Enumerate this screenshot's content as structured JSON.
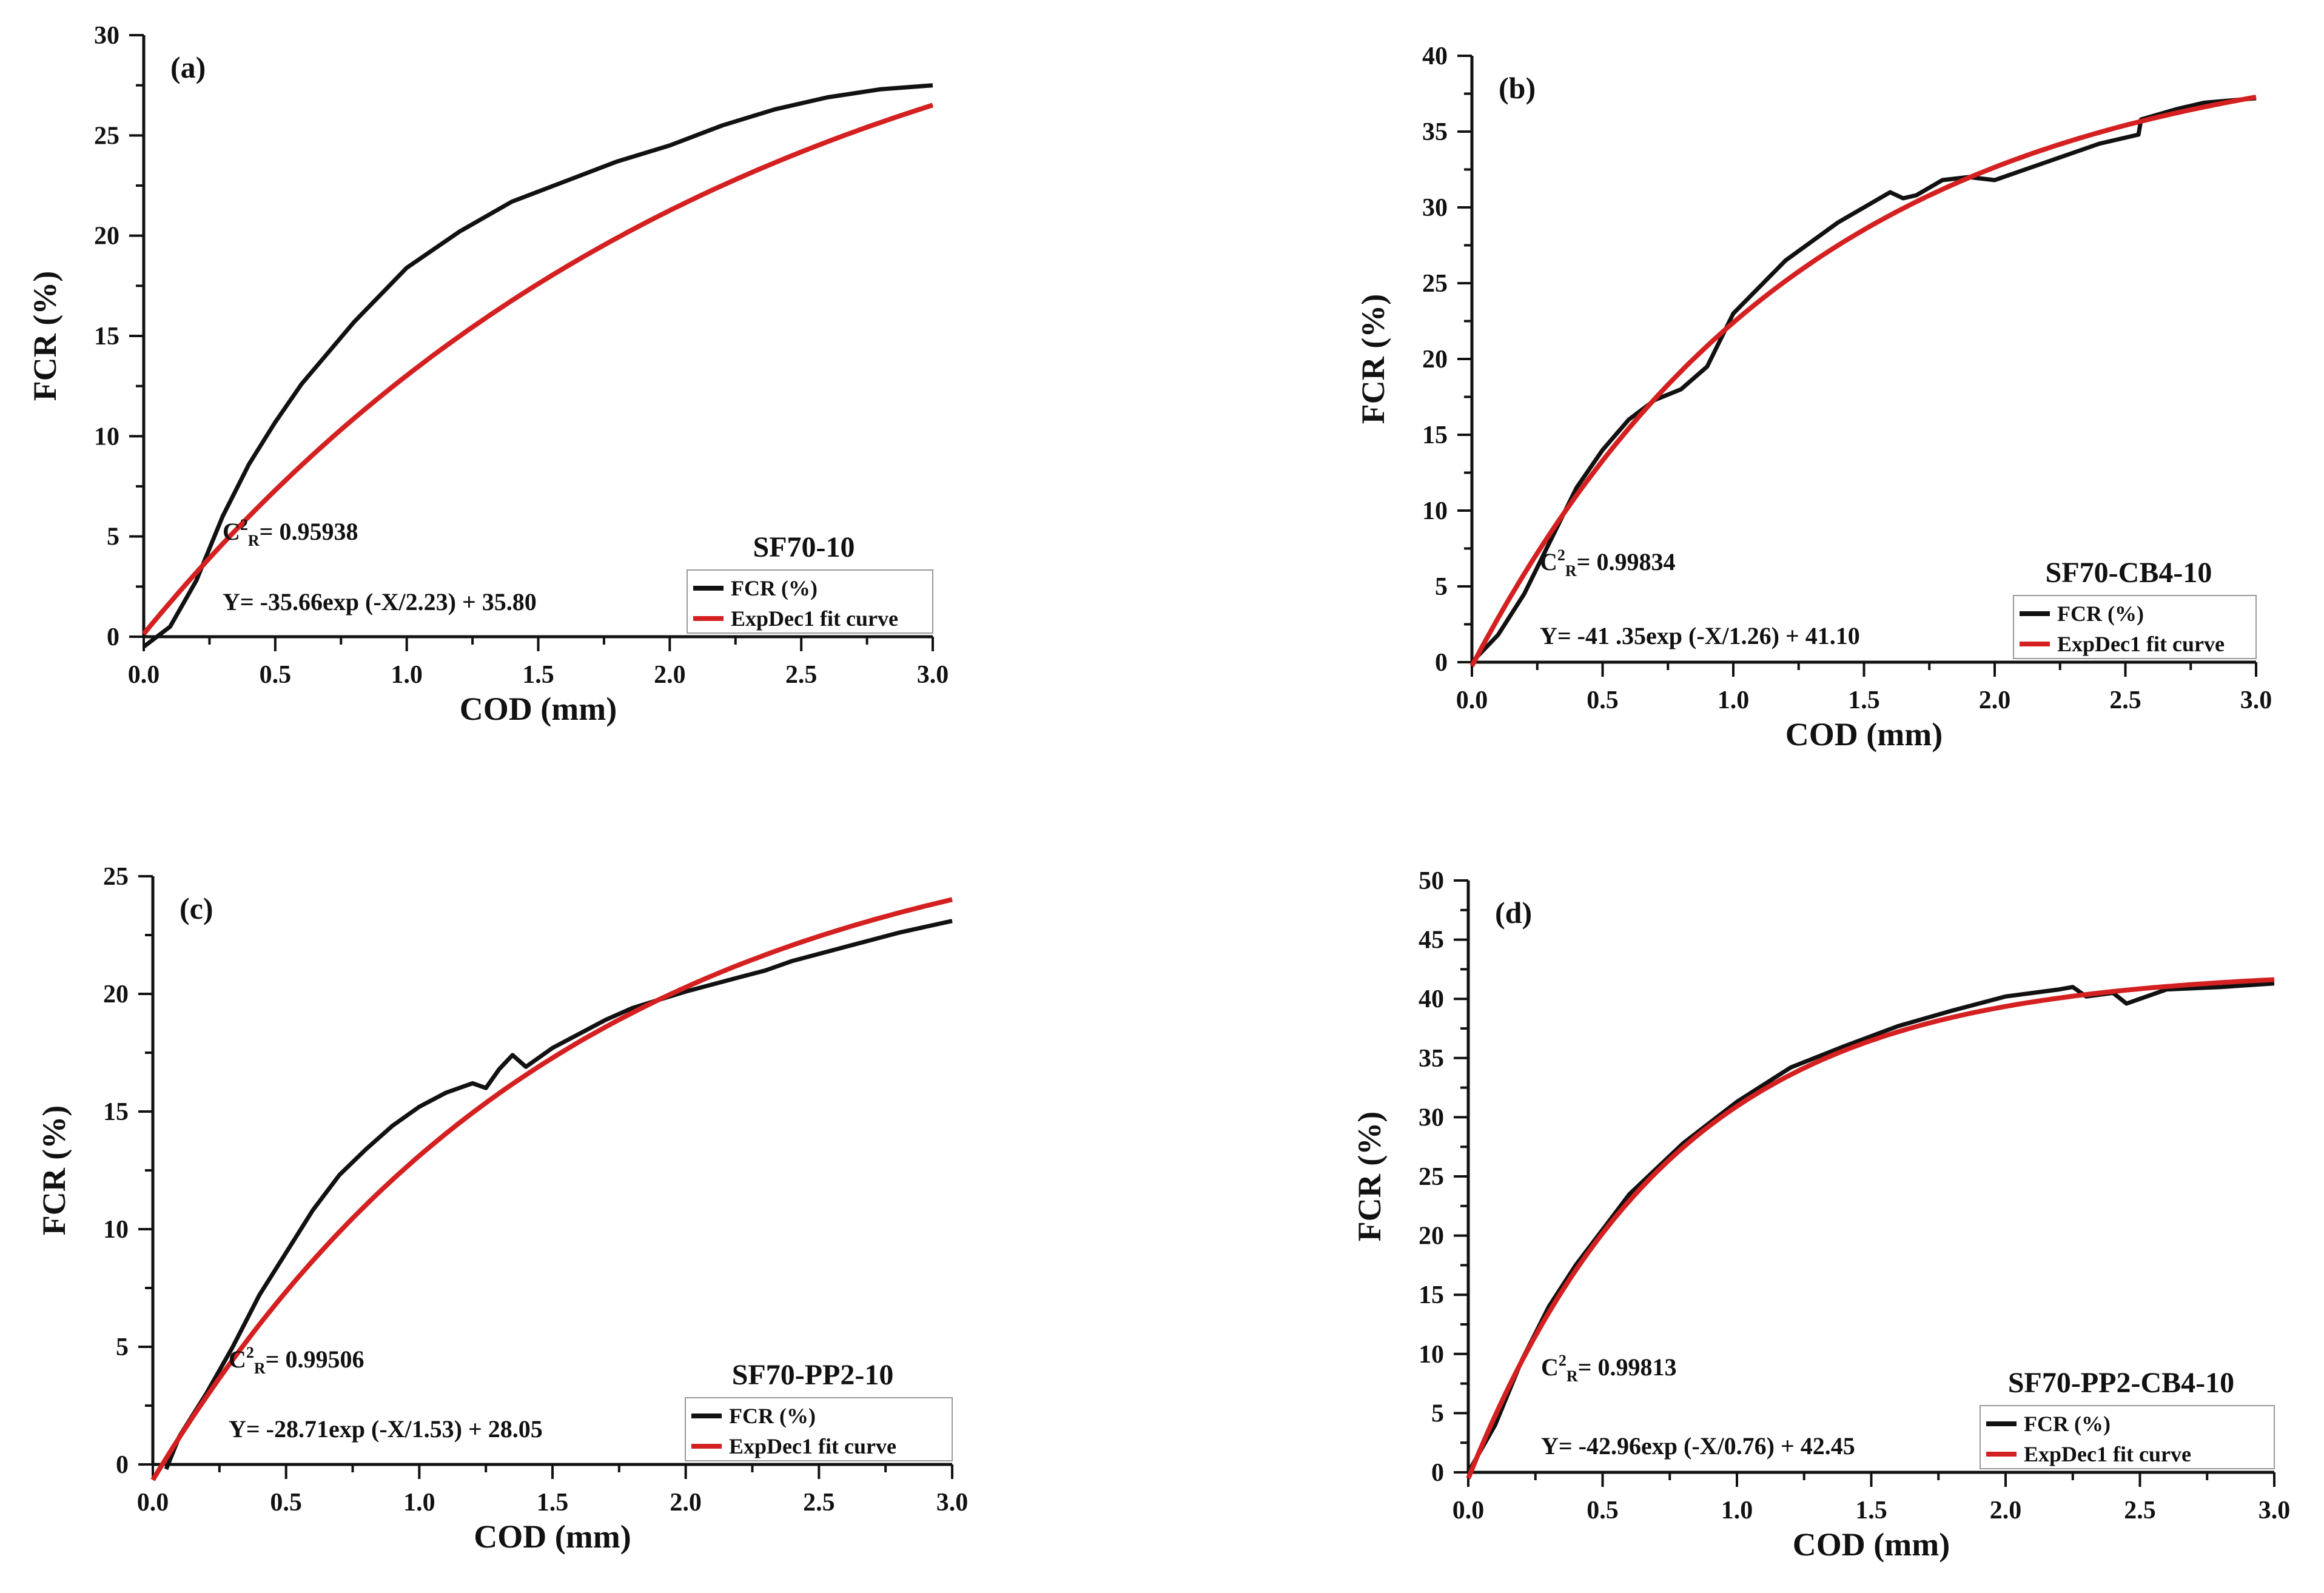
{
  "colors": {
    "data": "#111111",
    "fit": "#d42020",
    "axis": "#111111"
  },
  "chart_data": [
    {
      "type": "line",
      "panel_label": "(a)",
      "title": "SF70-10",
      "xlabel": "COD (mm)",
      "ylabel": "FCR (%)",
      "xlim": [
        0,
        3.0
      ],
      "ylim": [
        0,
        30
      ],
      "xticks": [
        "0.0",
        "0.5",
        "1.0",
        "1.5",
        "2.0",
        "2.5",
        "3.0"
      ],
      "yticks": [
        "0",
        "5",
        "10",
        "15",
        "20",
        "25",
        "30"
      ],
      "annotation_r2_prefix": "C",
      "annotation_r2_sup": "2",
      "annotation_r2_sub": "R",
      "annotation_r2_value": "= 0.95938",
      "annotation_eq": "Y= -35.66exp (-X/2.23) + 35.80",
      "legend": [
        "FCR (%)",
        "ExpDec1 fit curve"
      ],
      "series": [
        {
          "name": "FCR (%)",
          "x": [
            0.0,
            0.1,
            0.2,
            0.3,
            0.4,
            0.5,
            0.6,
            0.8,
            1.0,
            1.2,
            1.4,
            1.6,
            1.8,
            2.0,
            2.2,
            2.4,
            2.6,
            2.8,
            3.0
          ],
          "y": [
            -0.5,
            0.5,
            2.8,
            6.0,
            8.6,
            10.7,
            12.6,
            15.7,
            18.4,
            20.2,
            21.7,
            22.7,
            23.7,
            24.5,
            25.5,
            26.3,
            26.9,
            27.3,
            27.5
          ]
        },
        {
          "name": "ExpDec1 fit curve",
          "fit": {
            "A": -35.66,
            "t": 2.23,
            "y0": 35.8
          }
        }
      ]
    },
    {
      "type": "line",
      "panel_label": "(b)",
      "title": "SF70-CB4-10",
      "xlabel": "COD (mm)",
      "ylabel": "FCR (%)",
      "xlim": [
        0,
        3.0
      ],
      "ylim": [
        0,
        40
      ],
      "xticks": [
        "0.0",
        "0.5",
        "1.0",
        "1.5",
        "2.0",
        "2.5",
        "3.0"
      ],
      "yticks": [
        "0",
        "5",
        "10",
        "15",
        "20",
        "25",
        "30",
        "35",
        "40"
      ],
      "annotation_r2_prefix": "C",
      "annotation_r2_sup": "2",
      "annotation_r2_sub": "R",
      "annotation_r2_value": "= 0.99834",
      "annotation_eq": "Y= -41 .35exp (-X/1.26) + 41.10",
      "legend": [
        "FCR (%)",
        "ExpDec1 fit curve"
      ],
      "series": [
        {
          "name": "FCR (%)",
          "x": [
            0.0,
            0.1,
            0.2,
            0.3,
            0.4,
            0.5,
            0.6,
            0.7,
            0.8,
            0.9,
            1.0,
            1.2,
            1.4,
            1.6,
            1.65,
            1.7,
            1.8,
            1.9,
            2.0,
            2.2,
            2.4,
            2.55,
            2.56,
            2.7,
            2.8,
            3.0
          ],
          "y": [
            0.0,
            1.8,
            4.5,
            8.0,
            11.5,
            14.0,
            16.0,
            17.3,
            18.0,
            19.5,
            23.0,
            26.5,
            29.0,
            31.0,
            30.6,
            30.8,
            31.8,
            32.0,
            31.8,
            33.0,
            34.2,
            34.8,
            35.8,
            36.5,
            36.9,
            37.2
          ]
        },
        {
          "name": "ExpDec1 fit curve",
          "fit": {
            "A": -41.35,
            "t": 1.26,
            "y0": 41.1
          }
        }
      ]
    },
    {
      "type": "line",
      "panel_label": "(c)",
      "title": "SF70-PP2-10",
      "xlabel": "COD (mm)",
      "ylabel": "FCR (%)",
      "xlim": [
        0,
        3.0
      ],
      "ylim": [
        0,
        25
      ],
      "xticks": [
        "0.0",
        "0.5",
        "1.0",
        "1.5",
        "2.0",
        "2.5",
        "3.0"
      ],
      "yticks": [
        "0",
        "5",
        "10",
        "15",
        "20",
        "25"
      ],
      "annotation_r2_prefix": "C",
      "annotation_r2_sup": "2",
      "annotation_r2_sub": "R",
      "annotation_r2_value": "= 0.99506",
      "annotation_eq": "Y= -28.71exp (-X/1.53) + 28.05",
      "legend": [
        "FCR (%)",
        "ExpDec1 fit curve"
      ],
      "series": [
        {
          "name": "FCR (%)",
          "x": [
            0.05,
            0.1,
            0.2,
            0.3,
            0.4,
            0.5,
            0.6,
            0.7,
            0.8,
            0.9,
            1.0,
            1.1,
            1.2,
            1.25,
            1.3,
            1.35,
            1.4,
            1.45,
            1.5,
            1.6,
            1.7,
            1.8,
            2.0,
            2.2,
            2.3,
            2.4,
            2.6,
            2.8,
            3.0
          ],
          "y": [
            -0.2,
            1.2,
            3.0,
            5.0,
            7.2,
            9.0,
            10.8,
            12.3,
            13.4,
            14.4,
            15.2,
            15.8,
            16.2,
            16.0,
            16.8,
            17.4,
            16.9,
            17.3,
            17.7,
            18.3,
            18.9,
            19.4,
            20.1,
            20.7,
            21.0,
            21.4,
            22.0,
            22.6,
            23.1
          ]
        },
        {
          "name": "ExpDec1 fit curve",
          "fit": {
            "A": -28.71,
            "t": 1.53,
            "y0": 28.05
          }
        }
      ]
    },
    {
      "type": "line",
      "panel_label": "(d)",
      "title": "SF70-PP2-CB4-10",
      "xlabel": "COD (mm)",
      "ylabel": "FCR (%)",
      "xlim": [
        0,
        3.0
      ],
      "ylim": [
        0,
        50
      ],
      "xticks": [
        "0.0",
        "0.5",
        "1.0",
        "1.5",
        "2.0",
        "2.5",
        "3.0"
      ],
      "yticks": [
        "0",
        "5",
        "10",
        "15",
        "20",
        "25",
        "30",
        "35",
        "40",
        "45",
        "50"
      ],
      "annotation_r2_prefix": "C",
      "annotation_r2_sup": "2",
      "annotation_r2_sub": "R",
      "annotation_r2_value": "= 0.99813",
      "annotation_eq": "Y= -42.96exp (-X/0.76) + 42.45",
      "legend": [
        "FCR (%)",
        "ExpDec1 fit curve"
      ],
      "series": [
        {
          "name": "FCR (%)",
          "x": [
            0.0,
            0.1,
            0.2,
            0.3,
            0.4,
            0.5,
            0.6,
            0.8,
            1.0,
            1.2,
            1.4,
            1.6,
            1.8,
            2.0,
            2.2,
            2.25,
            2.3,
            2.4,
            2.45,
            2.5,
            2.6,
            2.8,
            3.0
          ],
          "y": [
            0.0,
            4.0,
            9.5,
            14.0,
            17.5,
            20.5,
            23.5,
            27.8,
            31.3,
            34.2,
            36.0,
            37.7,
            39.0,
            40.2,
            40.8,
            41.0,
            40.2,
            40.5,
            39.6,
            40.0,
            40.8,
            41.0,
            41.3
          ]
        },
        {
          "name": "ExpDec1 fit curve",
          "fit": {
            "A": -42.96,
            "t": 0.76,
            "y0": 42.45
          }
        }
      ]
    }
  ]
}
